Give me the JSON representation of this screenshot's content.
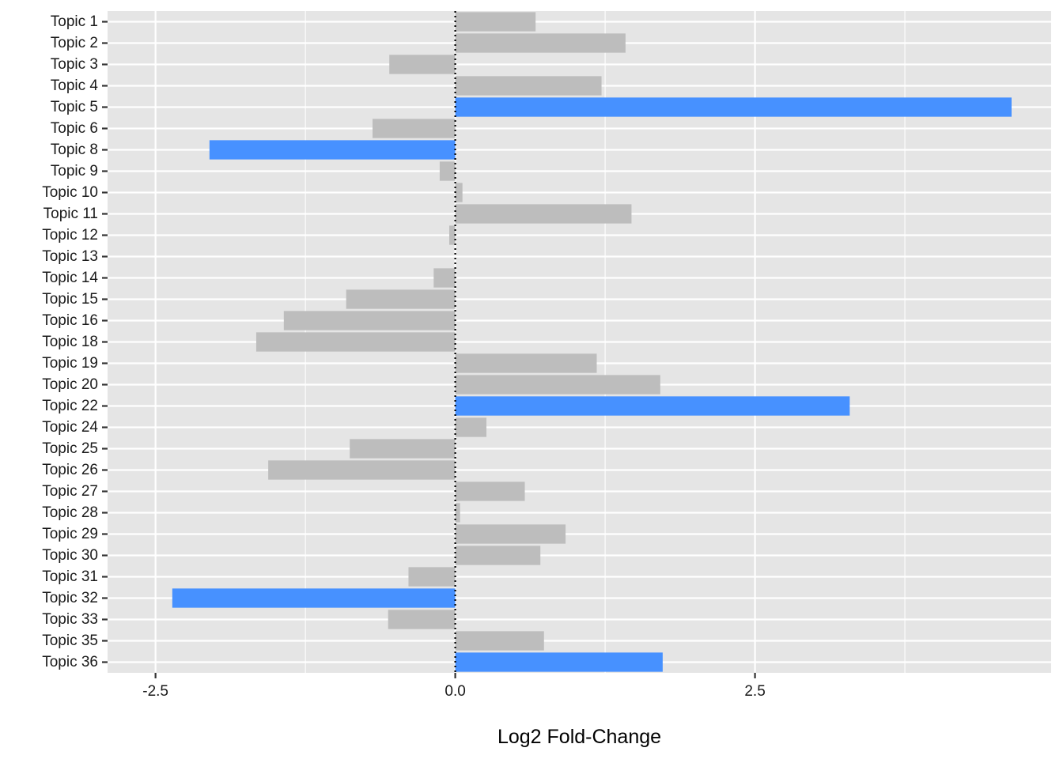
{
  "chart_data": {
    "type": "bar",
    "orientation": "horizontal",
    "xlabel": "Log2 Fold-Change",
    "ylabel": "",
    "xlim": [
      -2.9,
      4.97
    ],
    "x_ticks": [
      -2.5,
      0.0,
      2.5
    ],
    "x_tick_labels": [
      "-2.5",
      "0.0",
      "2.5"
    ],
    "grid": true,
    "zero_reference_line": "dotted",
    "categories": [
      "Topic 1",
      "Topic 2",
      "Topic 3",
      "Topic 4",
      "Topic 5",
      "Topic 6",
      "Topic 8",
      "Topic 9",
      "Topic 10",
      "Topic 11",
      "Topic 12",
      "Topic 13",
      "Topic 14",
      "Topic 15",
      "Topic 16",
      "Topic 18",
      "Topic 19",
      "Topic 20",
      "Topic 22",
      "Topic 24",
      "Topic 25",
      "Topic 26",
      "Topic 27",
      "Topic 28",
      "Topic 29",
      "Topic 30",
      "Topic 31",
      "Topic 32",
      "Topic 33",
      "Topic 35",
      "Topic 36"
    ],
    "values": [
      0.67,
      1.42,
      -0.55,
      1.22,
      4.64,
      -0.69,
      -2.05,
      -0.13,
      0.06,
      1.47,
      -0.05,
      0.0,
      -0.18,
      -0.91,
      -1.43,
      -1.66,
      1.18,
      1.71,
      3.29,
      0.26,
      -0.88,
      -1.56,
      0.58,
      0.04,
      0.92,
      0.71,
      -0.39,
      -2.36,
      -0.56,
      0.74,
      1.73
    ],
    "highlighted": [
      false,
      false,
      false,
      false,
      true,
      false,
      true,
      false,
      false,
      false,
      false,
      false,
      false,
      false,
      false,
      false,
      false,
      false,
      true,
      false,
      false,
      false,
      false,
      false,
      false,
      false,
      false,
      true,
      false,
      false,
      true
    ],
    "colors": {
      "panel_background": "#e5e5e5",
      "grid_line": "#ffffff",
      "bar_default": "#bdbdbd",
      "bar_highlight": "#4791ff",
      "zero_line": "#000000",
      "text": "#1a1a1a"
    }
  }
}
